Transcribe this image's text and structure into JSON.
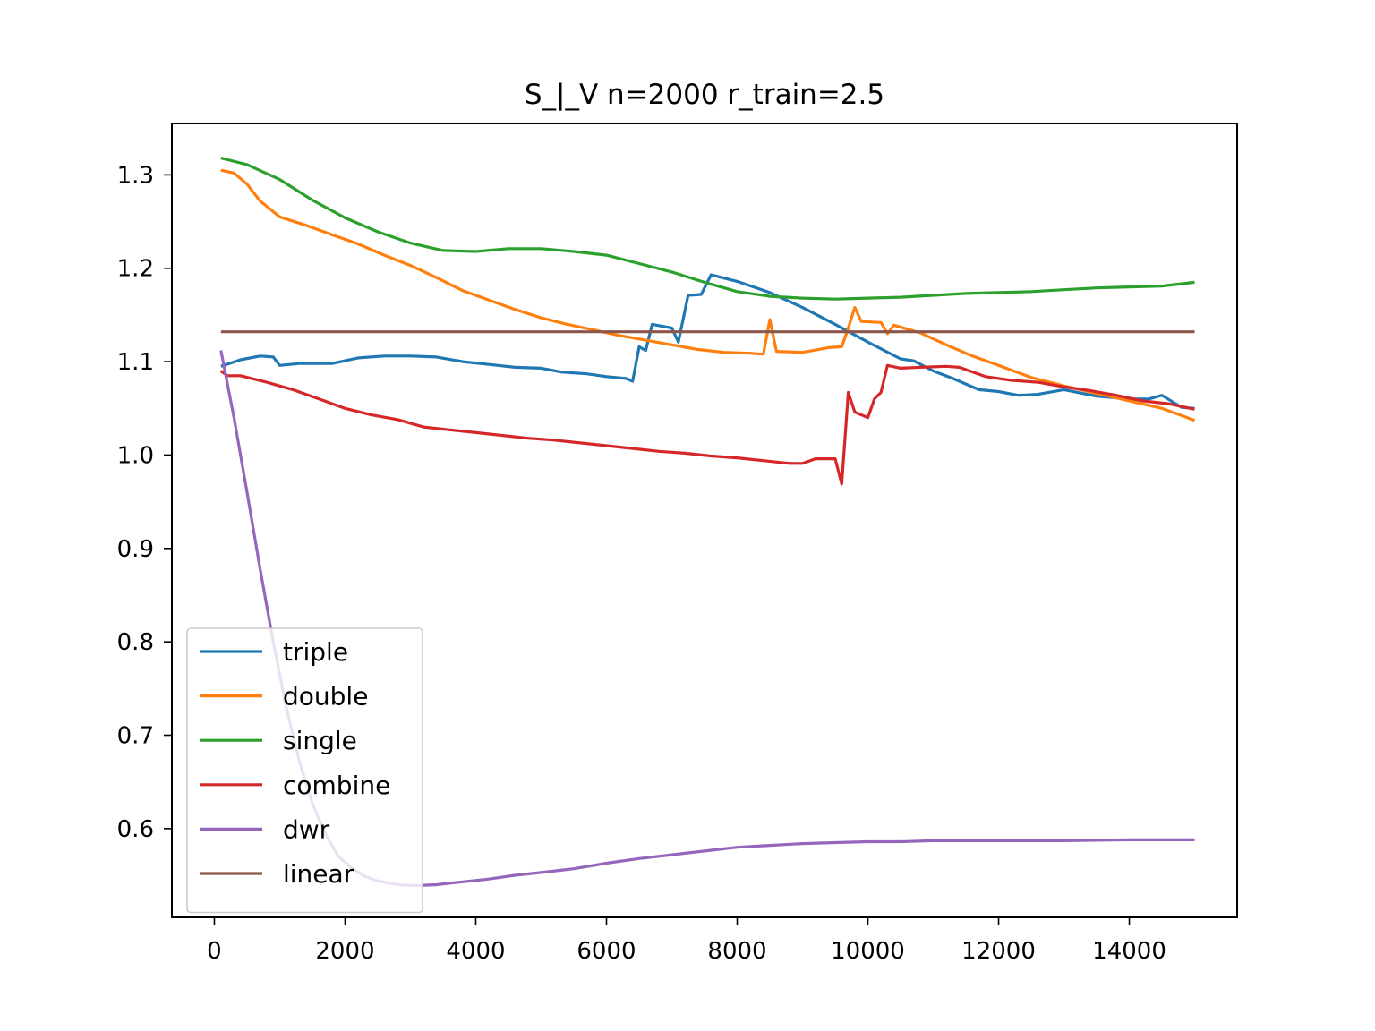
{
  "chart_data": {
    "type": "line",
    "title": "S_|_V n=2000 r_train=2.5",
    "xlabel": "",
    "ylabel": "",
    "xlim": [
      -650,
      15650
    ],
    "ylim": [
      0.505,
      1.355
    ],
    "xticks": [
      0,
      2000,
      4000,
      6000,
      8000,
      10000,
      12000,
      14000
    ],
    "xtick_labels": [
      "0",
      "2000",
      "4000",
      "6000",
      "8000",
      "10000",
      "12000",
      "14000"
    ],
    "yticks": [
      0.6,
      0.7,
      0.8,
      0.9,
      1.0,
      1.1,
      1.2,
      1.3
    ],
    "ytick_labels": [
      "0.6",
      "0.7",
      "0.8",
      "0.9",
      "1.0",
      "1.1",
      "1.2",
      "1.3"
    ],
    "grid": false,
    "legend_position": "lower-left",
    "series": [
      {
        "name": "triple",
        "color": "#1f77b4",
        "points": [
          [
            100,
            1.095
          ],
          [
            400,
            1.102
          ],
          [
            700,
            1.106
          ],
          [
            900,
            1.105
          ],
          [
            1000,
            1.096
          ],
          [
            1300,
            1.098
          ],
          [
            1800,
            1.098
          ],
          [
            2200,
            1.104
          ],
          [
            2600,
            1.106
          ],
          [
            3000,
            1.106
          ],
          [
            3400,
            1.105
          ],
          [
            3800,
            1.1
          ],
          [
            4200,
            1.097
          ],
          [
            4600,
            1.094
          ],
          [
            5000,
            1.093
          ],
          [
            5300,
            1.089
          ],
          [
            5700,
            1.087
          ],
          [
            6000,
            1.084
          ],
          [
            6300,
            1.082
          ],
          [
            6400,
            1.079
          ],
          [
            6500,
            1.116
          ],
          [
            6600,
            1.112
          ],
          [
            6700,
            1.14
          ],
          [
            7000,
            1.136
          ],
          [
            7100,
            1.121
          ],
          [
            7250,
            1.171
          ],
          [
            7450,
            1.172
          ],
          [
            7600,
            1.193
          ],
          [
            8000,
            1.186
          ],
          [
            8500,
            1.174
          ],
          [
            9000,
            1.158
          ],
          [
            9500,
            1.14
          ],
          [
            10000,
            1.121
          ],
          [
            10500,
            1.103
          ],
          [
            10700,
            1.101
          ],
          [
            11000,
            1.09
          ],
          [
            11300,
            1.082
          ],
          [
            11700,
            1.07
          ],
          [
            12000,
            1.068
          ],
          [
            12300,
            1.064
          ],
          [
            12600,
            1.065
          ],
          [
            13000,
            1.07
          ],
          [
            13500,
            1.063
          ],
          [
            14000,
            1.06
          ],
          [
            14300,
            1.06
          ],
          [
            14500,
            1.064
          ],
          [
            14800,
            1.051
          ],
          [
            15000,
            1.05
          ]
        ]
      },
      {
        "name": "double",
        "color": "#ff7f0e",
        "points": [
          [
            100,
            1.305
          ],
          [
            300,
            1.302
          ],
          [
            500,
            1.29
          ],
          [
            700,
            1.272
          ],
          [
            1000,
            1.255
          ],
          [
            1400,
            1.246
          ],
          [
            1800,
            1.236
          ],
          [
            2200,
            1.226
          ],
          [
            2600,
            1.214
          ],
          [
            3000,
            1.203
          ],
          [
            3400,
            1.19
          ],
          [
            3800,
            1.176
          ],
          [
            4200,
            1.166
          ],
          [
            4600,
            1.156
          ],
          [
            5000,
            1.147
          ],
          [
            5400,
            1.14
          ],
          [
            5800,
            1.134
          ],
          [
            6200,
            1.128
          ],
          [
            6600,
            1.123
          ],
          [
            7000,
            1.118
          ],
          [
            7400,
            1.113
          ],
          [
            7800,
            1.11
          ],
          [
            8200,
            1.109
          ],
          [
            8400,
            1.108
          ],
          [
            8500,
            1.145
          ],
          [
            8600,
            1.111
          ],
          [
            9000,
            1.11
          ],
          [
            9400,
            1.115
          ],
          [
            9600,
            1.116
          ],
          [
            9700,
            1.136
          ],
          [
            9800,
            1.158
          ],
          [
            9900,
            1.143
          ],
          [
            10200,
            1.142
          ],
          [
            10300,
            1.13
          ],
          [
            10400,
            1.139
          ],
          [
            10800,
            1.131
          ],
          [
            11200,
            1.118
          ],
          [
            11600,
            1.106
          ],
          [
            12000,
            1.096
          ],
          [
            12500,
            1.083
          ],
          [
            13000,
            1.074
          ],
          [
            13500,
            1.066
          ],
          [
            14000,
            1.058
          ],
          [
            14500,
            1.05
          ],
          [
            15000,
            1.037
          ]
        ]
      },
      {
        "name": "single",
        "color": "#2ca02c",
        "points": [
          [
            100,
            1.318
          ],
          [
            500,
            1.311
          ],
          [
            1000,
            1.295
          ],
          [
            1500,
            1.273
          ],
          [
            2000,
            1.254
          ],
          [
            2500,
            1.239
          ],
          [
            3000,
            1.227
          ],
          [
            3500,
            1.219
          ],
          [
            4000,
            1.218
          ],
          [
            4500,
            1.221
          ],
          [
            5000,
            1.221
          ],
          [
            5500,
            1.218
          ],
          [
            6000,
            1.214
          ],
          [
            6500,
            1.205
          ],
          [
            7000,
            1.196
          ],
          [
            7500,
            1.185
          ],
          [
            8000,
            1.175
          ],
          [
            8500,
            1.17
          ],
          [
            9000,
            1.168
          ],
          [
            9500,
            1.167
          ],
          [
            10000,
            1.168
          ],
          [
            10500,
            1.169
          ],
          [
            11000,
            1.171
          ],
          [
            11500,
            1.173
          ],
          [
            12000,
            1.174
          ],
          [
            12500,
            1.175
          ],
          [
            13000,
            1.177
          ],
          [
            13500,
            1.179
          ],
          [
            14000,
            1.18
          ],
          [
            14500,
            1.181
          ],
          [
            15000,
            1.185
          ]
        ]
      },
      {
        "name": "combine",
        "color": "#d62728",
        "points": [
          [
            100,
            1.09
          ],
          [
            200,
            1.085
          ],
          [
            400,
            1.085
          ],
          [
            800,
            1.078
          ],
          [
            1200,
            1.07
          ],
          [
            1600,
            1.06
          ],
          [
            2000,
            1.05
          ],
          [
            2400,
            1.043
          ],
          [
            2800,
            1.038
          ],
          [
            3200,
            1.03
          ],
          [
            3600,
            1.027
          ],
          [
            4000,
            1.024
          ],
          [
            4400,
            1.021
          ],
          [
            4800,
            1.018
          ],
          [
            5200,
            1.016
          ],
          [
            5600,
            1.013
          ],
          [
            6000,
            1.01
          ],
          [
            6400,
            1.007
          ],
          [
            6800,
            1.004
          ],
          [
            7200,
            1.002
          ],
          [
            7600,
            0.999
          ],
          [
            8000,
            0.997
          ],
          [
            8400,
            0.994
          ],
          [
            8800,
            0.991
          ],
          [
            9000,
            0.991
          ],
          [
            9200,
            0.996
          ],
          [
            9500,
            0.996
          ],
          [
            9600,
            0.969
          ],
          [
            9700,
            1.067
          ],
          [
            9800,
            1.046
          ],
          [
            10000,
            1.04
          ],
          [
            10100,
            1.06
          ],
          [
            10200,
            1.067
          ],
          [
            10300,
            1.096
          ],
          [
            10500,
            1.093
          ],
          [
            10800,
            1.094
          ],
          [
            11200,
            1.095
          ],
          [
            11400,
            1.094
          ],
          [
            11800,
            1.084
          ],
          [
            12200,
            1.08
          ],
          [
            12600,
            1.078
          ],
          [
            13000,
            1.073
          ],
          [
            13400,
            1.069
          ],
          [
            13800,
            1.064
          ],
          [
            14200,
            1.058
          ],
          [
            14600,
            1.055
          ],
          [
            15000,
            1.049
          ]
        ]
      },
      {
        "name": "dwr",
        "color": "#9467bd",
        "points": [
          [
            100,
            1.112
          ],
          [
            300,
            1.04
          ],
          [
            500,
            0.96
          ],
          [
            700,
            0.878
          ],
          [
            900,
            0.8
          ],
          [
            1100,
            0.73
          ],
          [
            1300,
            0.672
          ],
          [
            1500,
            0.627
          ],
          [
            1700,
            0.594
          ],
          [
            1900,
            0.57
          ],
          [
            2100,
            0.558
          ],
          [
            2300,
            0.549
          ],
          [
            2500,
            0.544
          ],
          [
            2800,
            0.54
          ],
          [
            3100,
            0.539
          ],
          [
            3400,
            0.54
          ],
          [
            3800,
            0.543
          ],
          [
            4200,
            0.546
          ],
          [
            4600,
            0.55
          ],
          [
            5000,
            0.553
          ],
          [
            5500,
            0.557
          ],
          [
            6000,
            0.563
          ],
          [
            6500,
            0.568
          ],
          [
            7000,
            0.572
          ],
          [
            7500,
            0.576
          ],
          [
            8000,
            0.58
          ],
          [
            8500,
            0.582
          ],
          [
            9000,
            0.584
          ],
          [
            9500,
            0.585
          ],
          [
            10000,
            0.586
          ],
          [
            10500,
            0.586
          ],
          [
            11000,
            0.587
          ],
          [
            12000,
            0.587
          ],
          [
            13000,
            0.587
          ],
          [
            14000,
            0.588
          ],
          [
            15000,
            0.588
          ]
        ]
      },
      {
        "name": "linear",
        "color": "#8c564b",
        "points": [
          [
            100,
            1.132
          ],
          [
            15000,
            1.132
          ]
        ]
      }
    ]
  }
}
